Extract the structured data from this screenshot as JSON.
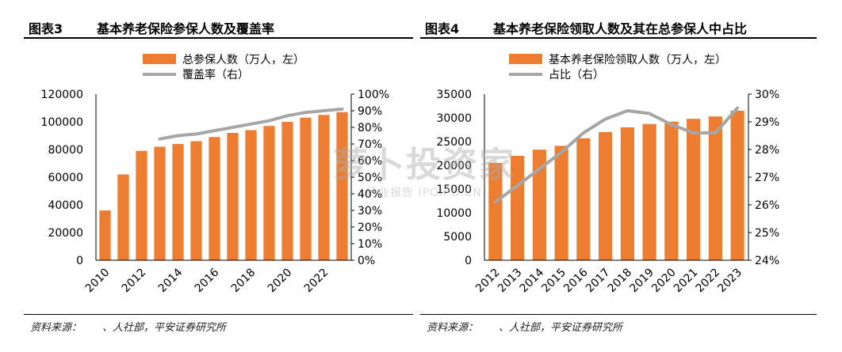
{
  "watermark": {
    "main": "萝卜投资家",
    "sub": "行业报告 IPOIPO.CN"
  },
  "panels": [
    {
      "id": "panel3",
      "figure_label": "图表3",
      "title": "基本养老保险参保人数及覆盖率",
      "source": "资料来源：　　、人社部，平安证券研究所"
    },
    {
      "id": "panel4",
      "figure_label": "图表4",
      "title": "基本养老保险领取人数及其在总参保人中占比",
      "source": "资料来源：　　、人社部，平安证券研究所"
    }
  ],
  "colors": {
    "bar": "#ED7D31",
    "line": "#A6A6A6"
  },
  "chart_data": [
    {
      "type": "bar",
      "x": [
        2010,
        2011,
        2012,
        2013,
        2014,
        2015,
        2016,
        2017,
        2018,
        2019,
        2020,
        2021,
        2022,
        2023
      ],
      "x_tick_labels": [
        "2010",
        "2012",
        "2014",
        "2016",
        "2018",
        "2020",
        "2022"
      ],
      "legend_placement": "top-center",
      "series": [
        {
          "name": "总参保人数（万人，左）",
          "type": "bar",
          "axis": "left",
          "values": [
            36000,
            62000,
            79000,
            82000,
            84000,
            86000,
            89000,
            92000,
            94000,
            97000,
            100000,
            103000,
            105000,
            107000
          ]
        },
        {
          "name": "覆盖率（右）",
          "type": "line",
          "axis": "right",
          "values": [
            null,
            null,
            null,
            0.73,
            0.75,
            0.76,
            0.78,
            0.8,
            0.82,
            0.84,
            0.87,
            0.89,
            0.9,
            0.91
          ]
        }
      ],
      "y_left": {
        "min": 0,
        "max": 120000,
        "ticks": [
          "0",
          "20000",
          "40000",
          "60000",
          "80000",
          "100000",
          "120000"
        ]
      },
      "y_right": {
        "min": 0,
        "max": 1.0,
        "ticks": [
          "0%",
          "10%",
          "20%",
          "30%",
          "40%",
          "50%",
          "60%",
          "70%",
          "80%",
          "90%",
          "100%"
        ]
      }
    },
    {
      "type": "bar",
      "x": [
        2012,
        2013,
        2014,
        2015,
        2016,
        2017,
        2018,
        2019,
        2020,
        2021,
        2022,
        2023
      ],
      "x_tick_labels": [
        "2012",
        "2013",
        "2014",
        "2015",
        "2016",
        "2017",
        "2018",
        "2019",
        "2020",
        "2021",
        "2022",
        "2023"
      ],
      "legend_placement": "top-center",
      "series": [
        {
          "name": "基本养老保险领取人数（万人，左）",
          "type": "bar",
          "axis": "left",
          "values": [
            20500,
            22000,
            23300,
            24100,
            25700,
            27000,
            28000,
            28700,
            29200,
            29800,
            30300,
            31500
          ]
        },
        {
          "name": "占比（右）",
          "type": "line",
          "axis": "right",
          "values": [
            0.261,
            0.267,
            0.273,
            0.279,
            0.286,
            0.291,
            0.294,
            0.293,
            0.289,
            0.286,
            0.286,
            0.295
          ]
        }
      ],
      "y_left": {
        "min": 0,
        "max": 35000,
        "ticks": [
          "0",
          "5000",
          "10000",
          "15000",
          "20000",
          "25000",
          "30000",
          "35000"
        ]
      },
      "y_right": {
        "min": 0.24,
        "max": 0.3,
        "ticks": [
          "24%",
          "25%",
          "26%",
          "27%",
          "28%",
          "29%",
          "30%"
        ]
      }
    }
  ]
}
